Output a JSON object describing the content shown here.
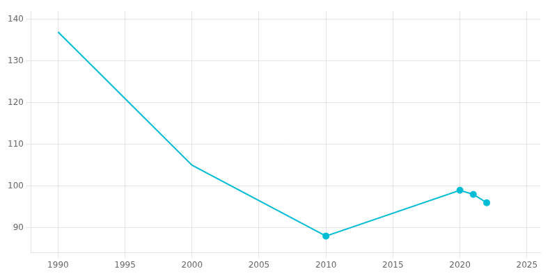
{
  "chart_data": {
    "type": "line",
    "x": [
      1990,
      2000,
      2010,
      2020,
      2021,
      2022
    ],
    "series": [
      {
        "color": "#00BCD4",
        "values": [
          137,
          105,
          88,
          99,
          98,
          96
        ],
        "marker": "none",
        "line_style": "solid"
      },
      {
        "color": "#00BCD4",
        "values": [
          null,
          null,
          88,
          99,
          98,
          96
        ],
        "marker": "circle",
        "line_style": "none"
      }
    ],
    "xlim": [
      1988,
      2026
    ],
    "xticks": [
      1990,
      1995,
      2000,
      2005,
      2010,
      2015,
      2020,
      2025
    ],
    "ylim": [
      84,
      142
    ],
    "yticks": [
      90,
      100,
      110,
      120,
      130,
      140
    ],
    "grid": true
  }
}
